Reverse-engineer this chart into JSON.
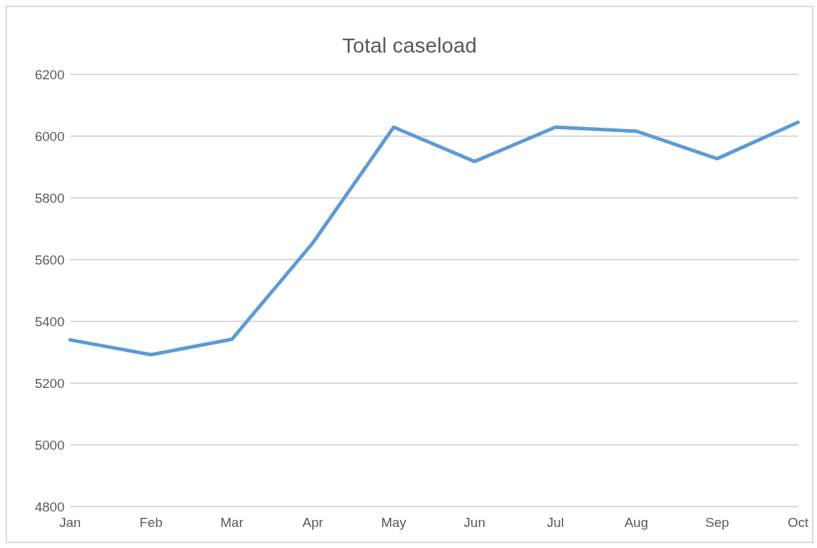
{
  "chart_data": {
    "type": "line",
    "title": "Total caseload",
    "categories": [
      "Jan",
      "Feb",
      "Mar",
      "Apr",
      "May",
      "Jun",
      "Jul",
      "Aug",
      "Sep",
      "Oct"
    ],
    "series": [
      {
        "color": "#5b9bd5",
        "values": [
          5340,
          5292,
          5342,
          5654,
          6029,
          5918,
          6029,
          6016,
          5927,
          6045
        ]
      }
    ],
    "ylim": [
      4800,
      6200
    ],
    "yticks": [
      4800,
      5000,
      5200,
      5400,
      5600,
      5800,
      6000,
      6200
    ],
    "grid": "y",
    "marker": "none",
    "legend": false
  }
}
